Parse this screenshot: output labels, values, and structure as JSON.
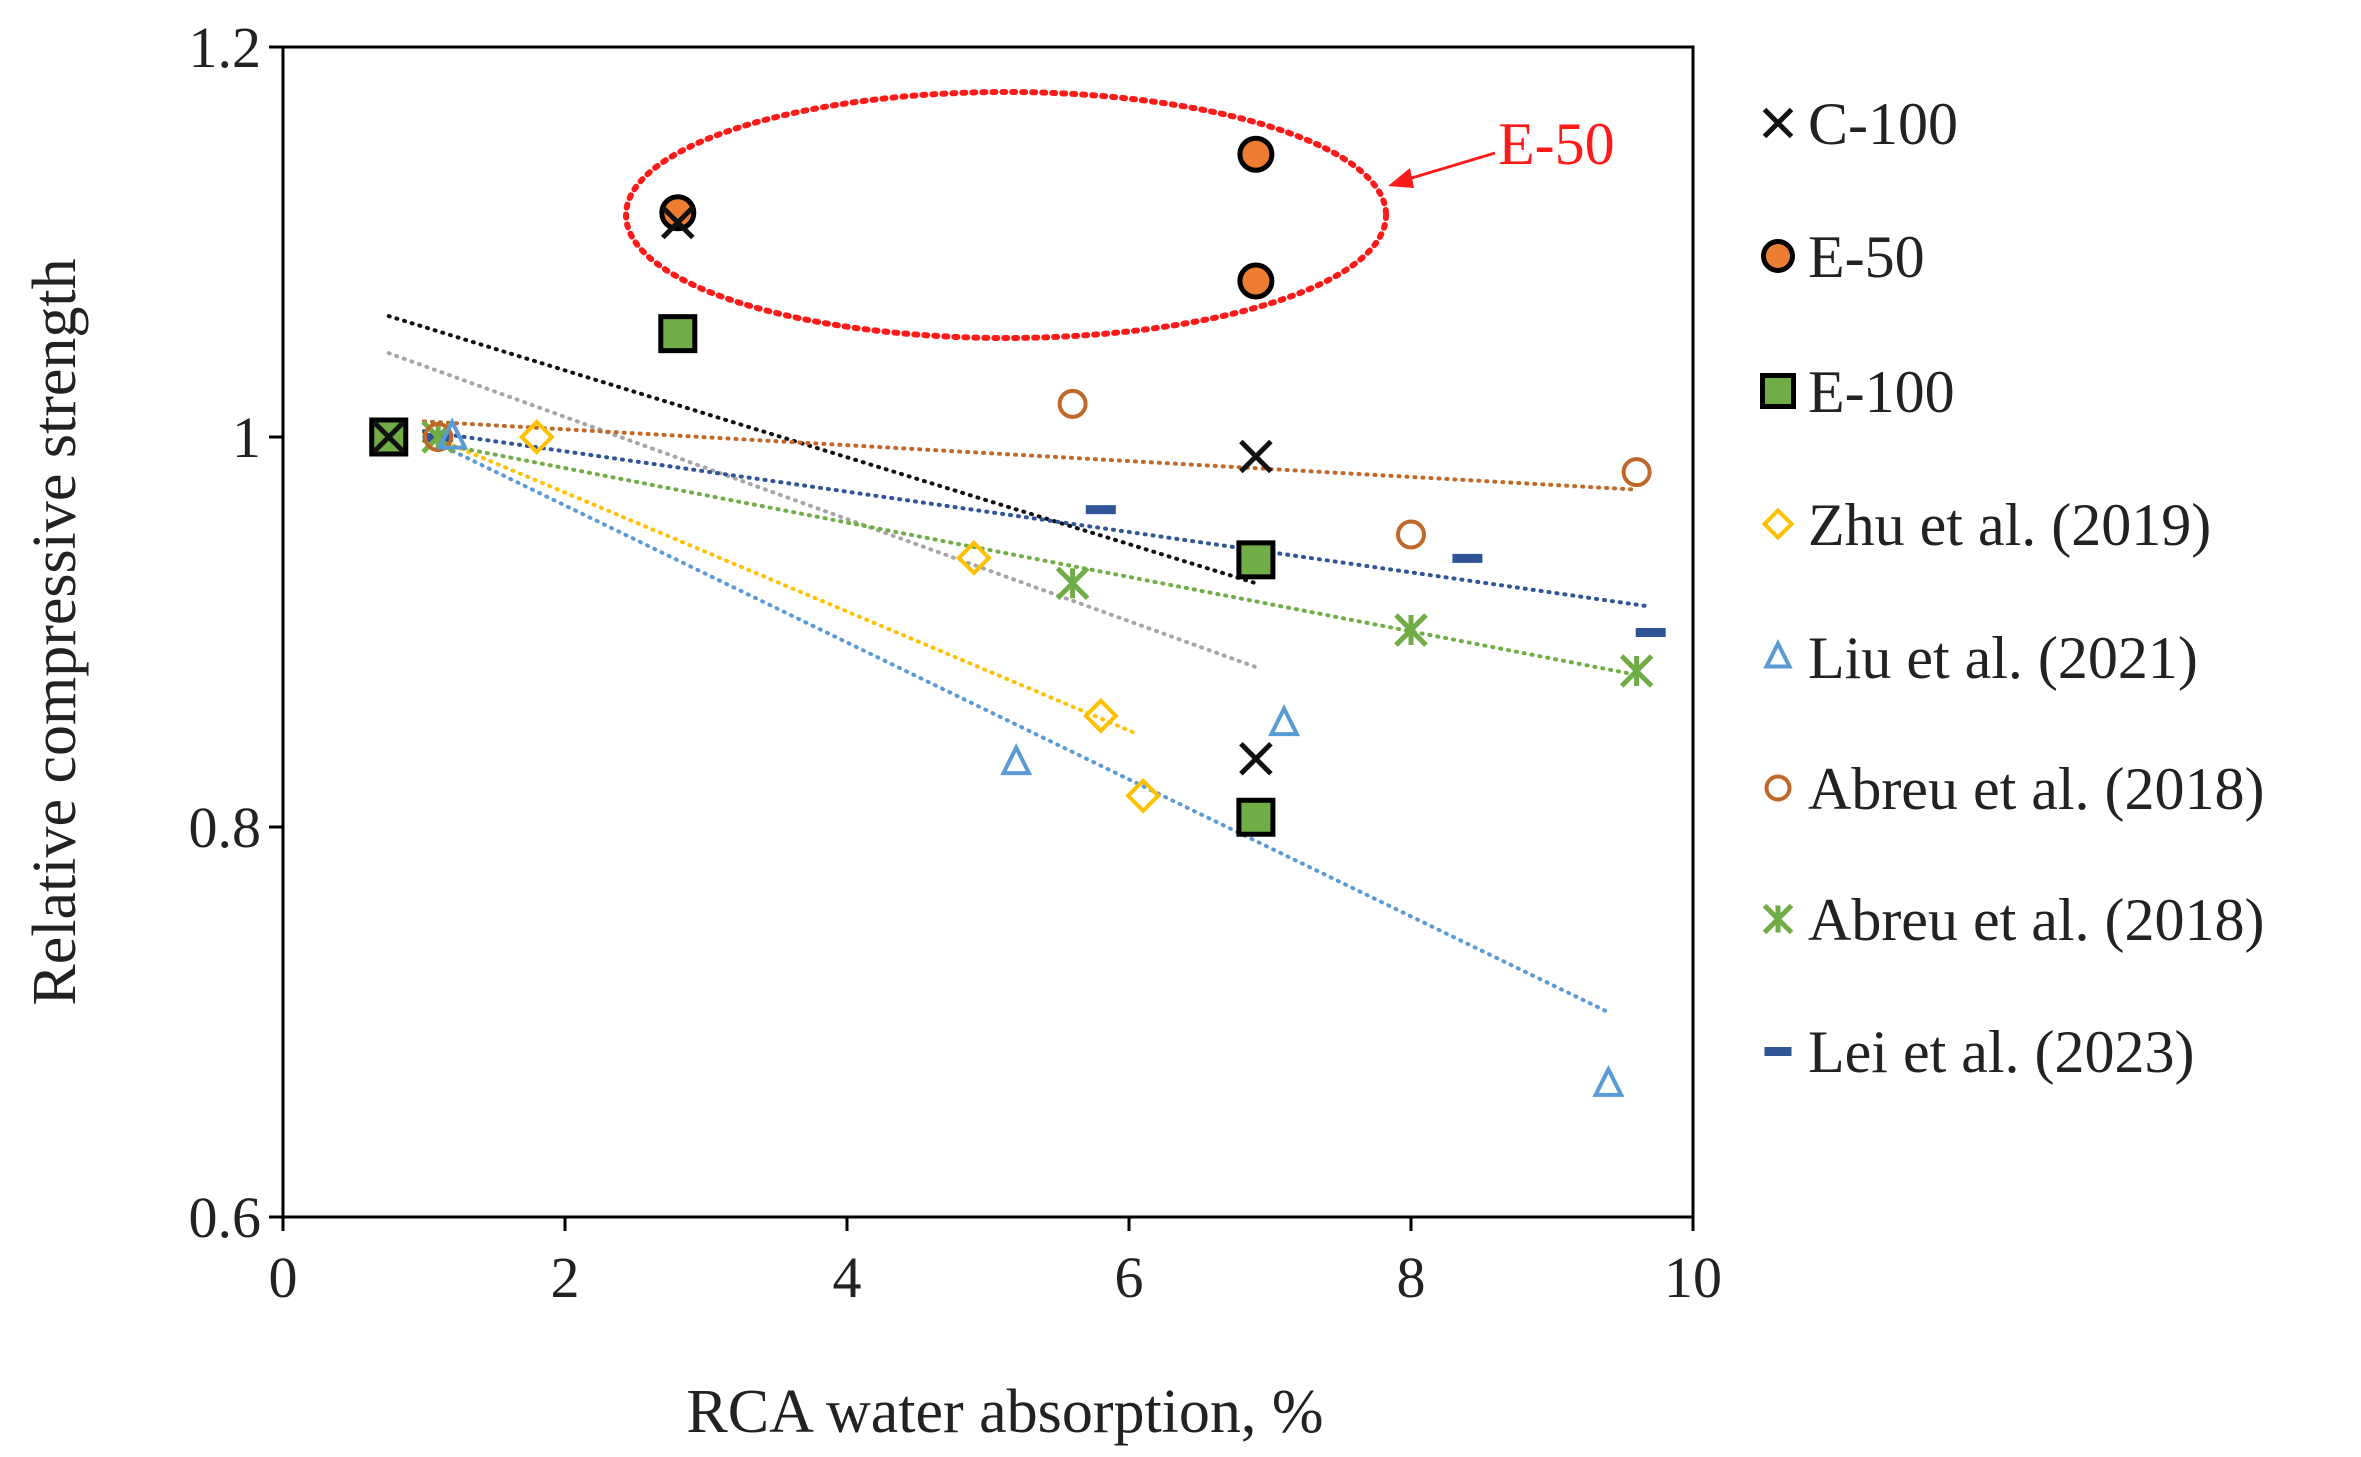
{
  "chart_data": {
    "type": "scatter",
    "title": "",
    "xlabel": "RCA water absorption, %",
    "ylabel": "Relative compressive strength",
    "xlim": [
      0,
      10
    ],
    "ylim": [
      0.6,
      1.2
    ],
    "xticks": [
      "0",
      "2",
      "4",
      "6",
      "8",
      "10"
    ],
    "yticks": [
      "0.6",
      "0.8",
      "1",
      "1.2"
    ],
    "xtick_values": [
      0,
      2,
      4,
      6,
      8,
      10
    ],
    "ytick_values": [
      0.6,
      0.8,
      1.0,
      1.2
    ],
    "grid": false,
    "legend_position": "right",
    "annotation": {
      "text": "E-50",
      "color": "#ff1a1a"
    },
    "series": [
      {
        "name": "C-100",
        "marker": "x",
        "color": "#111111",
        "points": [
          [
            0.75,
            1.0
          ],
          [
            2.8,
            1.11
          ],
          [
            6.9,
            0.99
          ],
          [
            6.9,
            0.835
          ]
        ],
        "trend": {
          "color": "#111111",
          "from": [
            0.75,
            1.062
          ],
          "to": [
            6.9,
            0.925
          ]
        }
      },
      {
        "name": "E-50",
        "marker": "circle-filled",
        "color": "#ed7d31",
        "points": [
          [
            2.8,
            1.115
          ],
          [
            6.9,
            1.145
          ],
          [
            6.9,
            1.08
          ]
        ]
      },
      {
        "name": "E-100",
        "marker": "square-filled",
        "color": "#70ad47",
        "points": [
          [
            0.75,
            1.0
          ],
          [
            2.8,
            1.053
          ],
          [
            6.9,
            0.937
          ],
          [
            6.9,
            0.805
          ]
        ],
        "trend": {
          "color": "#a6a6a6",
          "from": [
            0.75,
            1.043
          ],
          "to": [
            6.9,
            0.882
          ]
        }
      },
      {
        "name": "Zhu et al. (2019)",
        "marker": "diamond",
        "color": "#ffc000",
        "points": [
          [
            1.8,
            1.0
          ],
          [
            4.9,
            0.938
          ],
          [
            5.8,
            0.857
          ],
          [
            6.1,
            0.816
          ]
        ],
        "trend": {
          "color": "#ffc000",
          "from": [
            1.0,
            1.002
          ],
          "to": [
            6.05,
            0.848
          ]
        }
      },
      {
        "name": "Liu et al. (2021)",
        "marker": "triangle",
        "color": "#5b9bd5",
        "points": [
          [
            1.2,
            1.0
          ],
          [
            5.2,
            0.833
          ],
          [
            7.1,
            0.853
          ],
          [
            9.4,
            0.668
          ]
        ],
        "trend": {
          "color": "#5b9bd5",
          "from": [
            1.0,
            1.0
          ],
          "to": [
            9.4,
            0.705
          ]
        }
      },
      {
        "name": "Abreu et al. (2018)",
        "marker": "circle-open",
        "color": "#c0682a",
        "points": [
          [
            1.1,
            1.0
          ],
          [
            5.6,
            1.017
          ],
          [
            8.0,
            0.95
          ],
          [
            9.6,
            0.982
          ]
        ],
        "trend": {
          "color": "#c0682a",
          "from": [
            1.0,
            1.008
          ],
          "to": [
            9.6,
            0.973
          ]
        }
      },
      {
        "name": "Abreu et al. (2018)",
        "marker": "star",
        "color": "#70ad47",
        "points": [
          [
            1.1,
            1.0
          ],
          [
            5.6,
            0.925
          ],
          [
            8.0,
            0.901
          ],
          [
            9.6,
            0.88
          ]
        ],
        "trend": {
          "color": "#70ad47",
          "from": [
            1.0,
            0.998
          ],
          "to": [
            9.6,
            0.878
          ]
        }
      },
      {
        "name": "Lei et al. (2023)",
        "marker": "dash",
        "color": "#2f5597",
        "points": [
          [
            1.1,
            1.0
          ],
          [
            5.8,
            0.963
          ],
          [
            8.4,
            0.938
          ],
          [
            9.7,
            0.9
          ]
        ],
        "trend": {
          "color": "#2f5597",
          "from": [
            1.0,
            1.003
          ],
          "to": [
            9.7,
            0.913
          ]
        }
      }
    ]
  }
}
